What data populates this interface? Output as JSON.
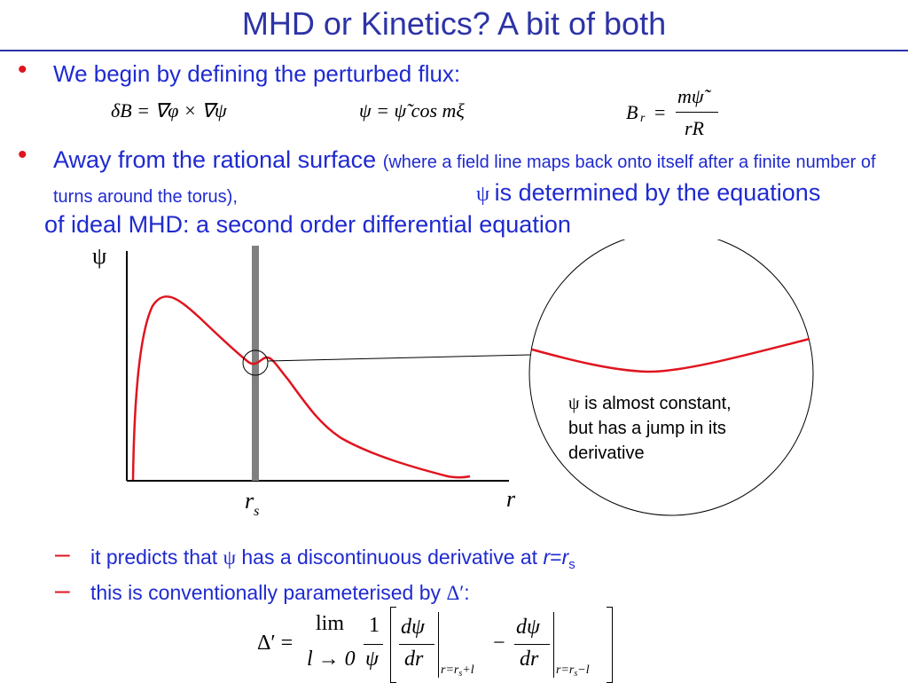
{
  "title": "MHD or Kinetics? A bit of both",
  "bullets": {
    "b1": {
      "text": "We begin by defining the perturbed flux:"
    },
    "b2": {
      "main": "Away from the rational surface",
      "paren": "(where a field line maps back onto itself after a finite number of turns around the torus),",
      "psi": "ψ",
      "rest1": "is determined by the equations",
      "rest2": "of ideal MHD: a second order differential equation"
    }
  },
  "equations": {
    "eq1": "δB = ∇φ × ∇ψ",
    "eq2_lhs": "ψ",
    "eq2_rhs": "= ψ̃ cos mξ",
    "br_lhs": "B",
    "br_sub": "r",
    "br_num": "mψ̃",
    "br_den": "rR"
  },
  "plot": {
    "y_label": "ψ",
    "x_label": "r",
    "rs_label": "r",
    "rs_sub": "s"
  },
  "callout": {
    "psi": "ψ",
    "line1": " is almost constant,",
    "line2": "but has a jump in its",
    "line3": "derivative"
  },
  "subbullets": {
    "dash": "–",
    "s1_a": "it predicts that",
    "s1_psi": "ψ",
    "s1_b": "has a discontinuous derivative at",
    "s1_r": "r",
    "s1_eq": "=",
    "s1_rs": "r",
    "s1_s": "s",
    "s2_a": "this is conventionally parameterised by",
    "s2_delta": "Δ′",
    "s2_colon": ":"
  },
  "delta_eq": {
    "lhs": "Δ′ =",
    "lim": "lim",
    "lim_sub": "l → 0",
    "one": "1",
    "psi": "ψ",
    "dpsi": "dψ",
    "dr": "dr",
    "minus": "−",
    "eval1": "r=r",
    "eval1_sub": "s",
    "eval1_end": "+l",
    "eval2": "r=r",
    "eval2_sub": "s",
    "eval2_end": "−l"
  },
  "colors": {
    "title": "#2c33a6",
    "text": "#1f2ad0",
    "bullet": "#e0141e",
    "curve": "#e0141e",
    "bar": "#808080"
  }
}
